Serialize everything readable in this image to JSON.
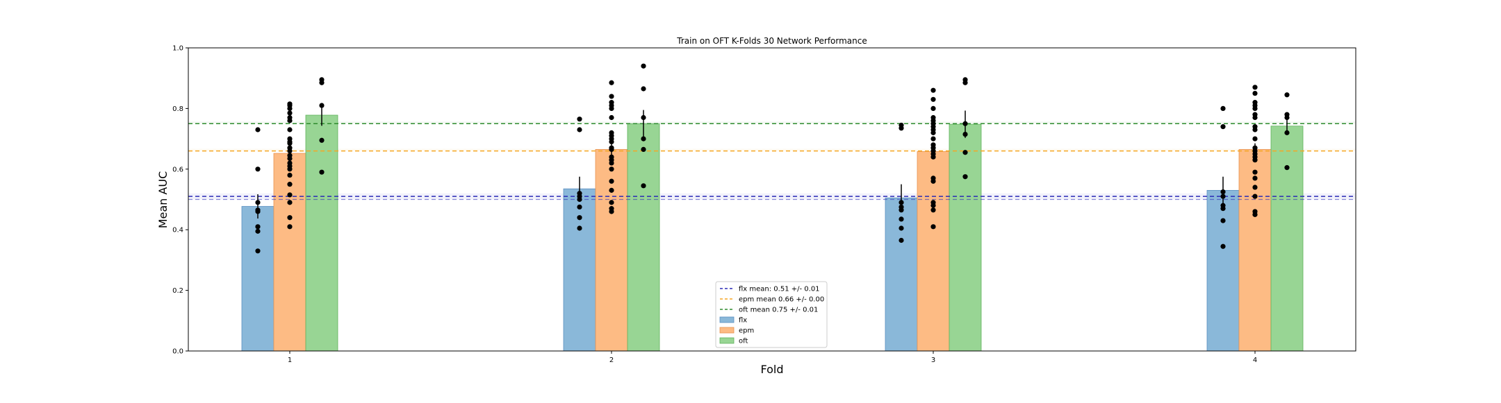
{
  "chart_data": {
    "type": "bar",
    "title": "Train on OFT K-Folds 30 Network Performance",
    "xlabel": "Fold",
    "ylabel": "Mean AUC",
    "ylim": [
      0.0,
      1.0
    ],
    "yticks": [
      "0.0",
      "0.2",
      "0.4",
      "0.6",
      "0.8",
      "1.0"
    ],
    "categories": [
      "1",
      "2",
      "3",
      "4"
    ],
    "grid": false,
    "legend_position": "lower-center",
    "series": [
      {
        "name": "flx",
        "color": "#8ab8d9",
        "edge": "#5b8fc0",
        "values": [
          0.477,
          0.535,
          0.505,
          0.53
        ],
        "err": [
          0.04,
          0.04,
          0.045,
          0.045
        ],
        "points": [
          [
            0.33,
            0.395,
            0.41,
            0.46,
            0.465,
            0.49,
            0.6,
            0.73
          ],
          [
            0.405,
            0.44,
            0.475,
            0.5,
            0.51,
            0.52,
            0.73,
            0.765
          ],
          [
            0.365,
            0.405,
            0.435,
            0.465,
            0.475,
            0.49,
            0.735,
            0.745
          ],
          [
            0.345,
            0.43,
            0.47,
            0.48,
            0.51,
            0.525,
            0.74,
            0.8
          ]
        ]
      },
      {
        "name": "epm",
        "color": "#fdbb84",
        "edge": "#e89350",
        "values": [
          0.652,
          0.665,
          0.658,
          0.665
        ],
        "err": [
          0.02,
          0.02,
          0.02,
          0.02
        ],
        "points": [
          [
            0.41,
            0.44,
            0.49,
            0.515,
            0.55,
            0.58,
            0.6,
            0.61,
            0.62,
            0.635,
            0.645,
            0.66,
            0.67,
            0.685,
            0.69,
            0.7,
            0.73,
            0.76,
            0.77,
            0.785,
            0.8,
            0.81,
            0.815
          ],
          [
            0.46,
            0.47,
            0.49,
            0.53,
            0.56,
            0.6,
            0.62,
            0.63,
            0.64,
            0.665,
            0.67,
            0.69,
            0.7,
            0.71,
            0.72,
            0.77,
            0.8,
            0.81,
            0.82,
            0.84,
            0.885
          ],
          [
            0.41,
            0.465,
            0.48,
            0.49,
            0.56,
            0.57,
            0.64,
            0.65,
            0.66,
            0.67,
            0.68,
            0.7,
            0.72,
            0.73,
            0.74,
            0.75,
            0.76,
            0.77,
            0.8,
            0.83,
            0.86
          ],
          [
            0.45,
            0.46,
            0.51,
            0.54,
            0.57,
            0.59,
            0.63,
            0.64,
            0.65,
            0.66,
            0.67,
            0.7,
            0.73,
            0.74,
            0.77,
            0.78,
            0.8,
            0.81,
            0.82,
            0.85,
            0.87
          ]
        ]
      },
      {
        "name": "oft",
        "color": "#98d594",
        "edge": "#5fb25b",
        "values": [
          0.778,
          0.75,
          0.748,
          0.742
        ],
        "err": [
          0.035,
          0.045,
          0.045,
          0.025
        ],
        "points": [
          [
            0.59,
            0.695,
            0.81,
            0.885,
            0.895
          ],
          [
            0.545,
            0.665,
            0.7,
            0.77,
            0.865,
            0.94
          ],
          [
            0.575,
            0.655,
            0.715,
            0.75,
            0.885,
            0.895
          ],
          [
            0.605,
            0.72,
            0.77,
            0.78,
            0.845
          ]
        ]
      }
    ],
    "hlines": [
      {
        "label": "flx mean: 0.51 +/- 0.01",
        "value": 0.51,
        "color": "#2a2ab5",
        "band": [
          0.5,
          0.52
        ]
      },
      {
        "label": "epm mean 0.66 +/- 0.00",
        "value": 0.66,
        "color": "#f5a623",
        "band": [
          0.66,
          0.667
        ]
      },
      {
        "label": "oft mean 0.75 +/- 0.01",
        "value": 0.75,
        "color": "#2e8b2e",
        "band": [
          0.75,
          0.757
        ]
      }
    ]
  }
}
